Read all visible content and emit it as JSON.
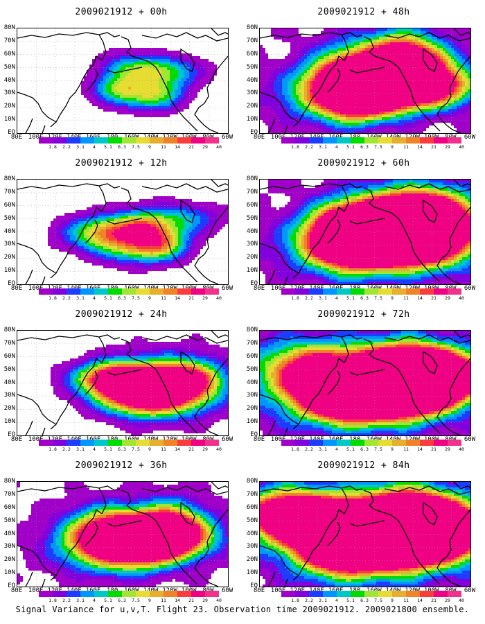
{
  "panels": [
    {
      "title": "2009021912 + 00h",
      "intensity": 0.15
    },
    {
      "title": "2009021912 + 48h",
      "intensity": 0.62
    },
    {
      "title": "2009021912 + 12h",
      "intensity": 0.28
    },
    {
      "title": "2009021912 + 60h",
      "intensity": 0.72
    },
    {
      "title": "2009021912 + 24h",
      "intensity": 0.4
    },
    {
      "title": "2009021912 + 72h",
      "intensity": 0.82
    },
    {
      "title": "2009021912 + 36h",
      "intensity": 0.52
    },
    {
      "title": "2009021912 + 84h",
      "intensity": 0.92
    }
  ],
  "lat_labels": [
    "80N",
    "70N",
    "60N",
    "50N",
    "40N",
    "30N",
    "20N",
    "10N",
    "EQ"
  ],
  "lon_labels": [
    "80E",
    "100E",
    "120E",
    "140E",
    "160E",
    "180",
    "160W",
    "140W",
    "120W",
    "100W",
    "80W",
    "60W"
  ],
  "colorbar": {
    "labels": [
      "1.8",
      "2.2",
      "3.1",
      "4",
      "5.1",
      "6.3",
      "7.5",
      "9",
      "11",
      "14",
      "21",
      "29",
      "40"
    ],
    "colors": [
      "#a000c8",
      "#8200dc",
      "#1e3cff",
      "#0096ff",
      "#00c8c8",
      "#00dc00",
      "#a0e632",
      "#e6dc32",
      "#e6af2d",
      "#f08228",
      "#fa3c3c",
      "#f00082",
      "#e0e0e0"
    ]
  },
  "caption": "Signal Variance for u,v,T. Flight 23. Observation time 2009021912. 2009021800 ensemble."
}
